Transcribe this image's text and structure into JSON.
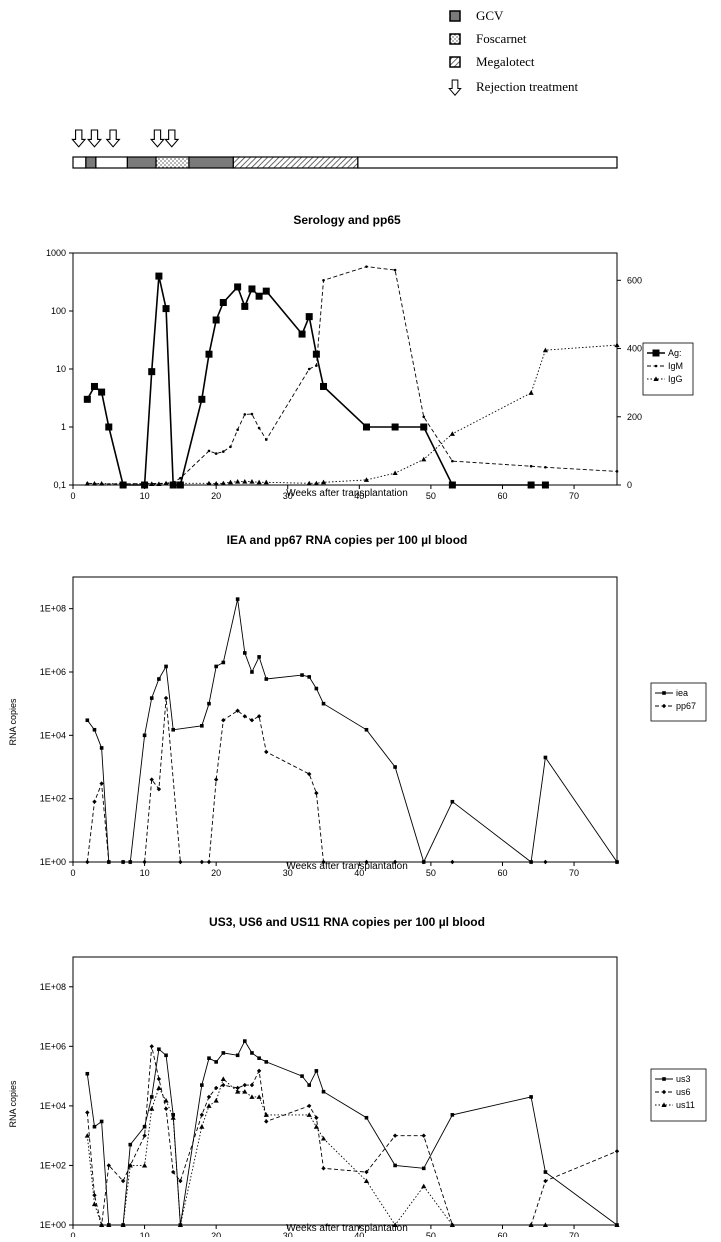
{
  "legend_top": {
    "items": [
      {
        "label": "GCV",
        "pattern": "solid-gray"
      },
      {
        "label": "Foscarnet",
        "pattern": "dotted"
      },
      {
        "label": "Megalotect",
        "pattern": "hatched"
      },
      {
        "label": "Rejection treatment",
        "pattern": "arrow"
      }
    ]
  },
  "timeline": {
    "x_range": [
      0,
      76
    ],
    "segments": [
      {
        "start": 0,
        "end": 1.8,
        "pattern": "empty"
      },
      {
        "start": 1.8,
        "end": 3.2,
        "pattern": "solid-gray"
      },
      {
        "start": 3.2,
        "end": 7.6,
        "pattern": "empty"
      },
      {
        "start": 7.6,
        "end": 11.6,
        "pattern": "solid-gray"
      },
      {
        "start": 11.6,
        "end": 16.2,
        "pattern": "dotted"
      },
      {
        "start": 16.2,
        "end": 22.4,
        "pattern": "solid-gray"
      },
      {
        "start": 22.4,
        "end": 39.8,
        "pattern": "hatched"
      },
      {
        "start": 39.8,
        "end": 76,
        "pattern": "empty"
      }
    ],
    "arrows": [
      0.8,
      3.0,
      5.6,
      11.8,
      13.8
    ]
  },
  "chart_data": [
    {
      "type": "line",
      "title": "Serology and pp65",
      "xlabel": "Weeks after transplantation",
      "ylabel": "",
      "xlim": [
        0,
        76
      ],
      "xticks": [
        0,
        10,
        20,
        30,
        40,
        50,
        60,
        70
      ],
      "y_scale": "log",
      "ylim": [
        0.1,
        1000
      ],
      "yticks": [
        "0,1",
        "1",
        "10",
        "100",
        "1000"
      ],
      "y2lim": [
        0,
        680
      ],
      "y2ticks": [
        0,
        200,
        400,
        600
      ],
      "legend_position": "right",
      "series": [
        {
          "name": "Ag:",
          "axis": "left",
          "style": "solid-square",
          "x": [
            2,
            3,
            4,
            5,
            7,
            10,
            11,
            12,
            13,
            14,
            15,
            18,
            19,
            20,
            21,
            23,
            24,
            25,
            26,
            27,
            32,
            33,
            34,
            35,
            41,
            45,
            49,
            53,
            64,
            66
          ],
          "y": [
            3,
            5,
            4,
            1,
            0.1,
            0.1,
            9,
            400,
            110,
            0.1,
            0.1,
            3,
            18,
            70,
            140,
            260,
            120,
            240,
            180,
            220,
            40,
            80,
            18,
            5,
            1,
            1,
            1,
            0.1,
            0.1,
            0.1
          ]
        },
        {
          "name": "IgM",
          "axis": "right",
          "style": "dashed-dot",
          "x": [
            2,
            3,
            4,
            11,
            13,
            14,
            15,
            19,
            20,
            21,
            22,
            23,
            24,
            25,
            26,
            27,
            33,
            34,
            35,
            41,
            45,
            49,
            53,
            64,
            66,
            76
          ],
          "y": [
            5,
            4,
            3,
            4,
            5,
            8,
            20,
            100,
            92,
            98,
            112,
            162,
            207,
            208,
            167,
            133,
            340,
            350,
            600,
            640,
            630,
            200,
            70,
            55,
            52,
            40
          ]
        },
        {
          "name": "IgG",
          "axis": "right",
          "style": "dotted-triangle",
          "x": [
            2,
            3,
            4,
            11,
            12,
            13,
            14,
            15,
            19,
            20,
            21,
            22,
            23,
            24,
            25,
            26,
            27,
            33,
            34,
            35,
            41,
            45,
            49,
            53,
            64,
            66,
            76
          ],
          "y": [
            4,
            4,
            4,
            3,
            3,
            5,
            4,
            5,
            5,
            4,
            5,
            8,
            10,
            10,
            10,
            8,
            8,
            5,
            5,
            8,
            15,
            35,
            75,
            150,
            270,
            395,
            410
          ]
        }
      ]
    },
    {
      "type": "line",
      "title": "IEA and pp67 RNA copies per 100 µl blood",
      "xlabel": "Weeks after transplantation",
      "ylabel": "RNA copies",
      "xlim": [
        0,
        76
      ],
      "xticks": [
        0,
        10,
        20,
        30,
        40,
        50,
        60,
        70
      ],
      "y_scale": "log",
      "ylim": [
        1,
        100000000
      ],
      "ylim_display": [
        1,
        1000000000
      ],
      "yticks": [
        "1E+00",
        "1E+02",
        "1E+04",
        "1E+06",
        "1E+08"
      ],
      "legend_position": "right",
      "series": [
        {
          "name": "iea",
          "style": "solid-square",
          "x": [
            2,
            3,
            4,
            5,
            7,
            8,
            10,
            11,
            12,
            13,
            14,
            18,
            19,
            20,
            21,
            23,
            24,
            25,
            26,
            27,
            32,
            33,
            34,
            35,
            41,
            45,
            49,
            53,
            64,
            66,
            76
          ],
          "y": [
            30000,
            15000,
            4000,
            1,
            1,
            1,
            10000,
            150000,
            600000,
            1500000,
            15000,
            20000,
            100000,
            1500000,
            2000000,
            200000000,
            4000000,
            1000000,
            3000000,
            600000,
            800000,
            700000,
            300000,
            100000,
            15000,
            1000,
            1,
            80,
            1,
            2000,
            1
          ]
        },
        {
          "name": "pp67",
          "style": "dashed-diamond",
          "x": [
            2,
            3,
            4,
            5,
            7,
            8,
            10,
            11,
            12,
            13,
            15,
            18,
            19,
            20,
            21,
            23,
            24,
            25,
            26,
            27,
            33,
            34,
            35,
            41,
            45,
            49,
            53,
            64,
            66,
            76
          ],
          "y": [
            1,
            80,
            300,
            1,
            1,
            1,
            1,
            400,
            200,
            150000,
            1,
            1,
            1,
            400,
            30000,
            60000,
            40000,
            30000,
            40000,
            3000,
            600,
            150,
            1,
            1,
            1,
            1,
            1,
            1,
            1,
            1
          ]
        }
      ]
    },
    {
      "type": "line",
      "title": "US3, US6 and US11 RNA copies per 100 µl blood",
      "xlabel": "Weeks after transplantation",
      "ylabel": "RNA copies",
      "xlim": [
        0,
        76
      ],
      "xticks": [
        0,
        10,
        20,
        30,
        40,
        50,
        60,
        70
      ],
      "y_scale": "log",
      "ylim": [
        1,
        100000000
      ],
      "ylim_display": [
        1,
        1000000000
      ],
      "yticks": [
        "1E+00",
        "1E+02",
        "1E+04",
        "1E+06",
        "1E+08"
      ],
      "legend_position": "right",
      "series": [
        {
          "name": "us3",
          "style": "solid-square",
          "x": [
            2,
            3,
            4,
            5,
            7,
            8,
            10,
            11,
            12,
            13,
            14,
            15,
            18,
            19,
            20,
            21,
            23,
            24,
            25,
            26,
            27,
            32,
            33,
            34,
            35,
            41,
            45,
            49,
            53,
            64,
            66,
            76
          ],
          "y": [
            120000,
            2000,
            3000,
            1,
            1,
            500,
            2000,
            20000,
            800000,
            500000,
            5000,
            1,
            50000,
            400000,
            300000,
            600000,
            500000,
            1500000,
            600000,
            400000,
            300000,
            100000,
            50000,
            150000,
            30000,
            4000,
            100,
            80,
            5000,
            20000,
            60,
            1
          ]
        },
        {
          "name": "us6",
          "style": "dashed-diamond",
          "x": [
            2,
            3,
            4,
            5,
            7,
            8,
            10,
            11,
            12,
            13,
            14,
            15,
            18,
            19,
            20,
            21,
            23,
            24,
            25,
            26,
            27,
            33,
            34,
            35,
            41,
            45,
            49,
            53,
            64,
            66,
            76
          ],
          "y": [
            6000,
            10,
            1,
            100,
            30,
            100,
            1000,
            1000000,
            80000,
            8000,
            60,
            30,
            5000,
            20000,
            40000,
            50000,
            40000,
            50000,
            50000,
            150000,
            3000,
            10000,
            4000,
            80,
            60,
            1000,
            1000,
            1,
            1,
            30,
            300
          ]
        },
        {
          "name": "us11",
          "style": "dotted-triangle",
          "x": [
            2,
            3,
            4,
            5,
            7,
            8,
            10,
            11,
            12,
            13,
            14,
            15,
            18,
            19,
            20,
            21,
            23,
            24,
            25,
            26,
            27,
            33,
            34,
            35,
            41,
            45,
            49,
            53,
            64,
            66,
            76
          ],
          "y": [
            1000,
            5,
            1,
            1,
            1,
            100,
            100,
            8000,
            40000,
            15000,
            4000,
            1,
            2000,
            10000,
            15000,
            80000,
            30000,
            30000,
            20000,
            20000,
            5000,
            5000,
            2000,
            800,
            30,
            1,
            20,
            1,
            1,
            1,
            1
          ]
        }
      ]
    }
  ]
}
